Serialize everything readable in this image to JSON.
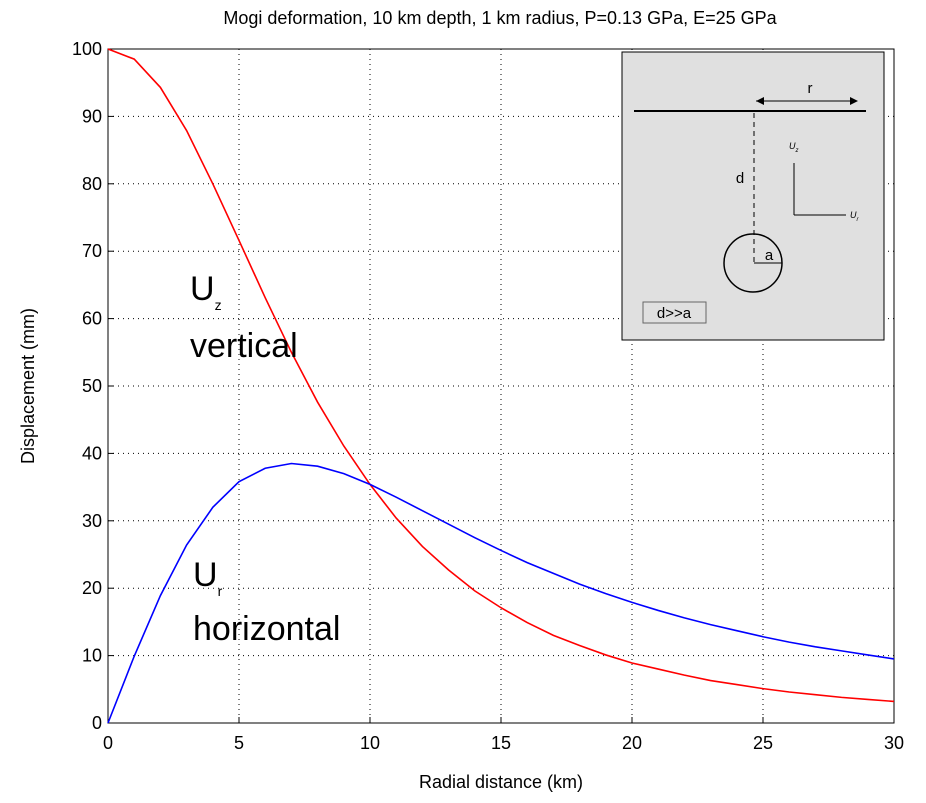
{
  "chart_data": {
    "type": "line",
    "title": "Mogi deformation, 10 km depth, 1 km radius, P=0.13 GPa, E=25 GPa",
    "x_label": "Radial distance (km)",
    "y_label": "Displacement (mm)",
    "x": [
      0,
      1,
      2,
      3,
      4,
      5,
      6,
      7,
      8,
      9,
      10,
      11,
      12,
      13,
      14,
      15,
      16,
      17,
      18,
      19,
      20,
      21,
      22,
      23,
      24,
      25,
      26,
      27,
      28,
      29,
      30
    ],
    "series": [
      {
        "color": "#ff0000",
        "values": [
          100,
          98.5,
          94.3,
          87.9,
          80.0,
          71.6,
          63.1,
          55.0,
          47.6,
          41.1,
          35.4,
          30.4,
          26.2,
          22.7,
          19.6,
          17.1,
          14.9,
          13.0,
          11.5,
          10.1,
          8.9,
          8.0,
          7.1,
          6.3,
          5.7,
          5.1,
          4.6,
          4.2,
          3.8,
          3.5,
          3.2
        ]
      },
      {
        "color": "#0000ff",
        "values": [
          0,
          9.9,
          18.9,
          26.4,
          32.0,
          35.8,
          37.8,
          38.5,
          38.1,
          37.0,
          35.4,
          33.5,
          31.5,
          29.5,
          27.5,
          25.6,
          23.8,
          22.2,
          20.6,
          19.2,
          17.9,
          16.7,
          15.6,
          14.6,
          13.7,
          12.8,
          12.0,
          11.3,
          10.7,
          10.1,
          9.5
        ]
      }
    ],
    "xlim": [
      0,
      30
    ],
    "xticks": [
      0,
      5,
      10,
      15,
      20,
      25,
      30
    ],
    "ylim": [
      0,
      100
    ],
    "yticks": [
      0,
      10,
      20,
      30,
      40,
      50,
      60,
      70,
      80,
      90,
      100
    ],
    "grid": true,
    "annotations": [
      {
        "label": "U",
        "subscript": "z",
        "text": "vertical"
      },
      {
        "label": "U",
        "subscript": "r",
        "text": "horizontal"
      }
    ],
    "inset": {
      "r": "r",
      "d": "d",
      "uz": "U",
      "uz_sub": "z",
      "ur": "U",
      "ur_sub": "r",
      "a": "a",
      "note": "d>>a"
    }
  }
}
